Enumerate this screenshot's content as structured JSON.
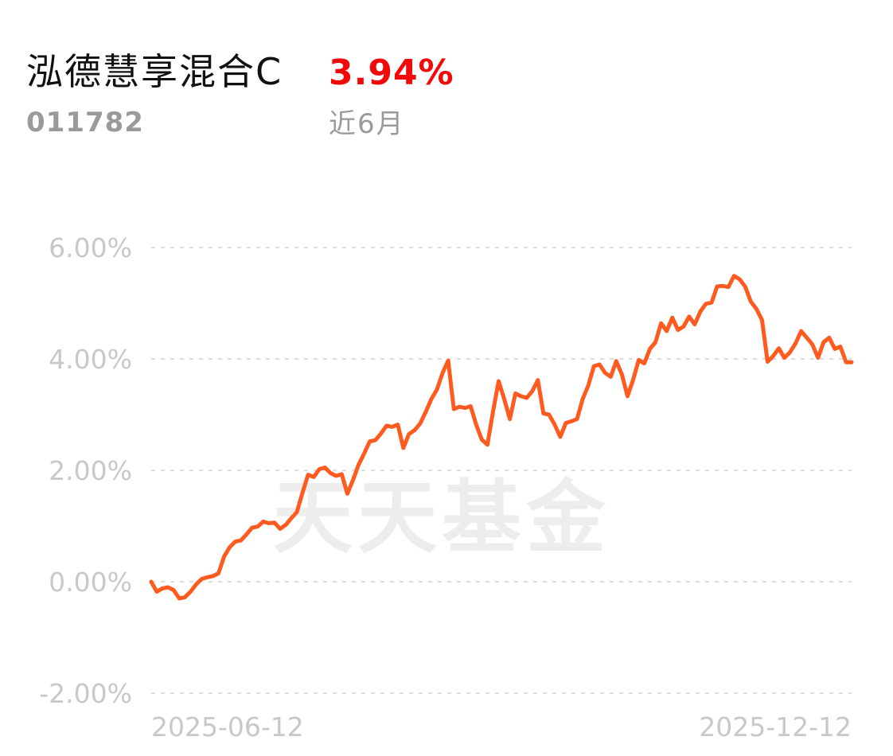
{
  "header": {
    "fund_name": "泓德慧享混合C",
    "fund_code": "011782",
    "return_value": "3.94%",
    "period_label": "近6月"
  },
  "watermark": "天天基金",
  "colors": {
    "line": "#ff5a1f",
    "return_positive": "#f20a0a",
    "grid": "#dddddd",
    "tick_text": "#c8c8c8"
  },
  "chart_data": {
    "type": "line",
    "title": "",
    "xlabel": "",
    "ylabel": "",
    "x_start": "2025-06-12",
    "x_end": "2025-12-12",
    "x_tick_labels": [
      "2025-06-12",
      "2025-12-12"
    ],
    "y_ticks": [
      6,
      4,
      2,
      0,
      -2
    ],
    "y_tick_labels": [
      "6.00%",
      "4.00%",
      "2.00%",
      "0.00%",
      "-2.00%"
    ],
    "ylim": [
      -2,
      6
    ],
    "grid": true,
    "series": [
      {
        "values": [
          0.0,
          -0.18,
          -0.12,
          -0.1,
          -0.15,
          -0.3,
          -0.28,
          -0.18,
          -0.05,
          0.05,
          0.08,
          0.1,
          0.15,
          0.45,
          0.62,
          0.72,
          0.74,
          0.85,
          0.97,
          0.99,
          1.08,
          1.05,
          1.06,
          0.95,
          1.02,
          1.14,
          1.25,
          1.6,
          1.92,
          1.88,
          2.02,
          2.05,
          1.95,
          1.9,
          1.93,
          1.58,
          1.82,
          2.1,
          2.3,
          2.52,
          2.54,
          2.66,
          2.8,
          2.78,
          2.82,
          2.4,
          2.65,
          2.72,
          2.84,
          3.05,
          3.28,
          3.45,
          3.75,
          3.97,
          3.1,
          3.14,
          3.12,
          3.15,
          2.82,
          2.55,
          2.46,
          3.05,
          3.6,
          3.28,
          2.92,
          3.38,
          3.33,
          3.3,
          3.42,
          3.62,
          3.02,
          3.0,
          2.82,
          2.6,
          2.85,
          2.88,
          2.92,
          3.28,
          3.52,
          3.87,
          3.9,
          3.75,
          3.68,
          3.96,
          3.72,
          3.33,
          3.62,
          3.98,
          3.92,
          4.18,
          4.3,
          4.64,
          4.5,
          4.74,
          4.52,
          4.58,
          4.76,
          4.62,
          4.85,
          4.99,
          5.01,
          5.3,
          5.31,
          5.29,
          5.49,
          5.43,
          5.3,
          5.03,
          4.9,
          4.7,
          3.95,
          4.05,
          4.19,
          4.02,
          4.12,
          4.28,
          4.5,
          4.38,
          4.26,
          4.02,
          4.3,
          4.38,
          4.18,
          4.22,
          3.94,
          3.94
        ]
      }
    ]
  }
}
